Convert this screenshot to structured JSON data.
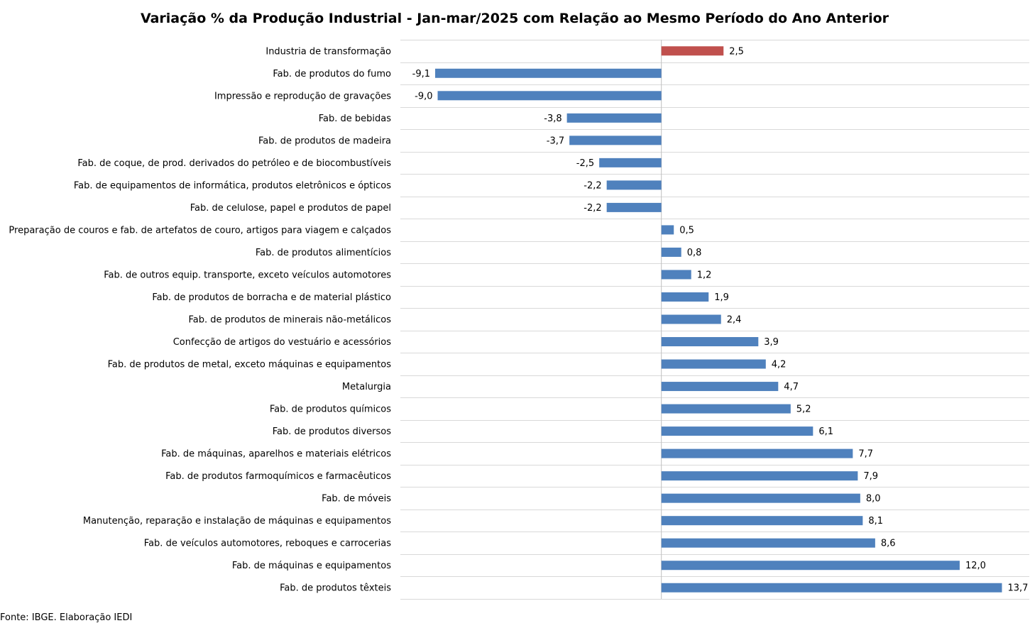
{
  "chart_data": {
    "type": "bar",
    "orientation": "horizontal",
    "title": "Variação % da Produção Industrial - Jan-mar/2025 com Relação ao Mesmo Período do Ano Anterior",
    "xlabel": "",
    "ylabel": "",
    "xlim": [
      -10.5,
      14.8
    ],
    "grid": "horizontal",
    "legend": "none",
    "bar_color": "#4F81BD",
    "highlight_color": "#C0504D",
    "highlight_category": "Industria de transformação",
    "categories": [
      "Industria de transformação",
      "Fab. de produtos do fumo",
      "Impressão e reprodução de gravações",
      "Fab. de bebidas",
      "Fab. de produtos de madeira",
      "Fab. de coque, de prod. derivados do petróleo e de biocombustíveis",
      "Fab. de equipamentos de informática, produtos eletrônicos e ópticos",
      "Fab. de celulose, papel e produtos de papel",
      "Preparação de couros e fab. de artefatos de couro, artigos para viagem e calçados",
      "Fab. de produtos alimentícios",
      "Fab. de outros equip. transporte, exceto veículos automotores",
      "Fab. de produtos de borracha e de material plástico",
      "Fab. de produtos de minerais não-metálicos",
      "Confecção de artigos do vestuário e acessórios",
      "Fab. de produtos de metal, exceto máquinas e equipamentos",
      "Metalurgia",
      "Fab. de produtos químicos",
      "Fab. de produtos diversos",
      "Fab. de máquinas, aparelhos e materiais elétricos",
      "Fab. de produtos farmoquímicos e farmacêuticos",
      "Fab. de móveis",
      "Manutenção, reparação e instalação de máquinas e equipamentos",
      "Fab. de veículos automotores, reboques e carrocerias",
      "Fab. de máquinas e equipamentos",
      "Fab. de produtos têxteis"
    ],
    "values": [
      2.5,
      -9.1,
      -9.0,
      -3.8,
      -3.7,
      -2.5,
      -2.2,
      -2.2,
      0.5,
      0.8,
      1.2,
      1.9,
      2.4,
      3.9,
      4.2,
      4.7,
      5.2,
      6.1,
      7.7,
      7.9,
      8.0,
      8.1,
      8.6,
      12.0,
      13.7
    ],
    "value_labels": [
      "2,5",
      "-9,1",
      "-9,0",
      "-3,8",
      "-3,7",
      "-2,5",
      "-2,2",
      "-2,2",
      "0,5",
      "0,8",
      "1,2",
      "1,9",
      "2,4",
      "3,9",
      "4,2",
      "4,7",
      "5,2",
      "6,1",
      "7,7",
      "7,9",
      "8,0",
      "8,1",
      "8,6",
      "12,0",
      "13,7"
    ]
  },
  "source_note": "Fonte: IBGE. Elaboração IEDI"
}
